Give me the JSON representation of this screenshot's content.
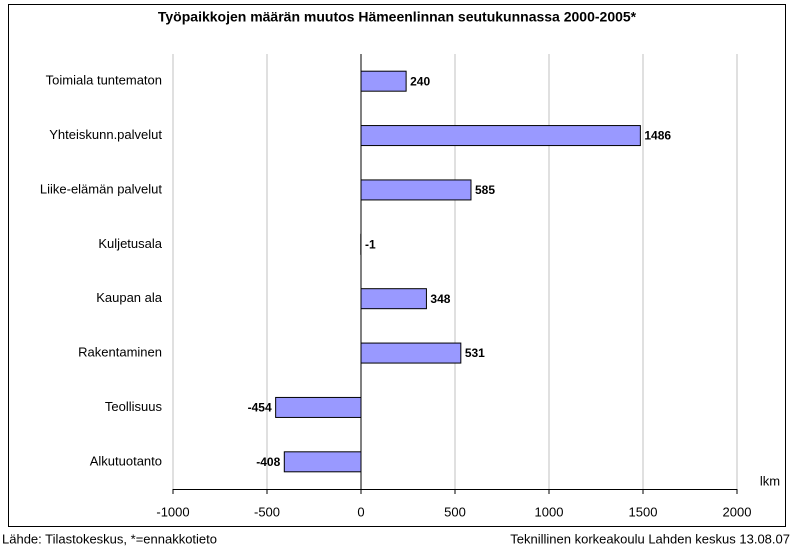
{
  "chart_data": {
    "type": "bar",
    "orientation": "horizontal",
    "title": "Työpaikkojen määrän muutos Hämeenlinnan seutukunnassa 2000-2005*",
    "x_label": "lkm",
    "categories": [
      "Toimiala tuntematon",
      "Yhteiskunn.palvelut",
      "Liike-elämän palvelut",
      "Kuljetusala",
      "Kaupan ala",
      "Rakentaminen",
      "Teollisuus",
      "Alkutuotanto"
    ],
    "values": [
      240,
      1486,
      585,
      -1,
      348,
      531,
      -454,
      -408
    ],
    "color": "#9999ff",
    "xlim": [
      -1000,
      2000
    ],
    "xticks": [
      -1000,
      -500,
      0,
      500,
      1000,
      1500,
      2000
    ],
    "grid": true,
    "source": "Lähde: Tilastokeskus, *=ennakkotieto",
    "credit": "Teknillinen korkeakoulu Lahden keskus 13.08.07"
  }
}
